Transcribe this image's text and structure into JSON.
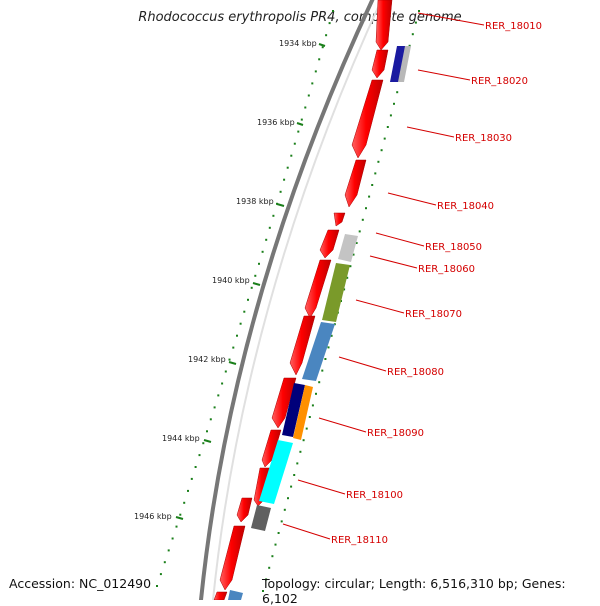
{
  "title": "Rhodococcus erythropolis PR4, complete genome",
  "accession": "Accession: NC_012490",
  "summary": "Topology: circular; Length: 6,516,310 bp; Genes: 6,102",
  "ticks": [
    "1934 kbp",
    "1936 kbp",
    "1938 kbp",
    "1940 kbp",
    "1942 kbp",
    "1944 kbp",
    "1946 kbp"
  ],
  "genes": [
    "RER_18010",
    "RER_18020",
    "RER_18030",
    "RER_18040",
    "RER_18050",
    "RER_18060",
    "RER_18070",
    "RER_18080",
    "RER_18090",
    "RER_18100",
    "RER_18110"
  ],
  "colors": {
    "gene_forward": "#ff0000",
    "label": "#d40000",
    "dots": "#1a7f1a",
    "backbone": "#777777",
    "cog_gray": "#b8b8b8",
    "cog_navy": "#00007a",
    "cog_olive": "#7a9a2a",
    "cog_steel": "#4a86c0",
    "cog_orange": "#ff9000",
    "cog_cyan": "#00ffff",
    "cog_dark": "#606060"
  }
}
